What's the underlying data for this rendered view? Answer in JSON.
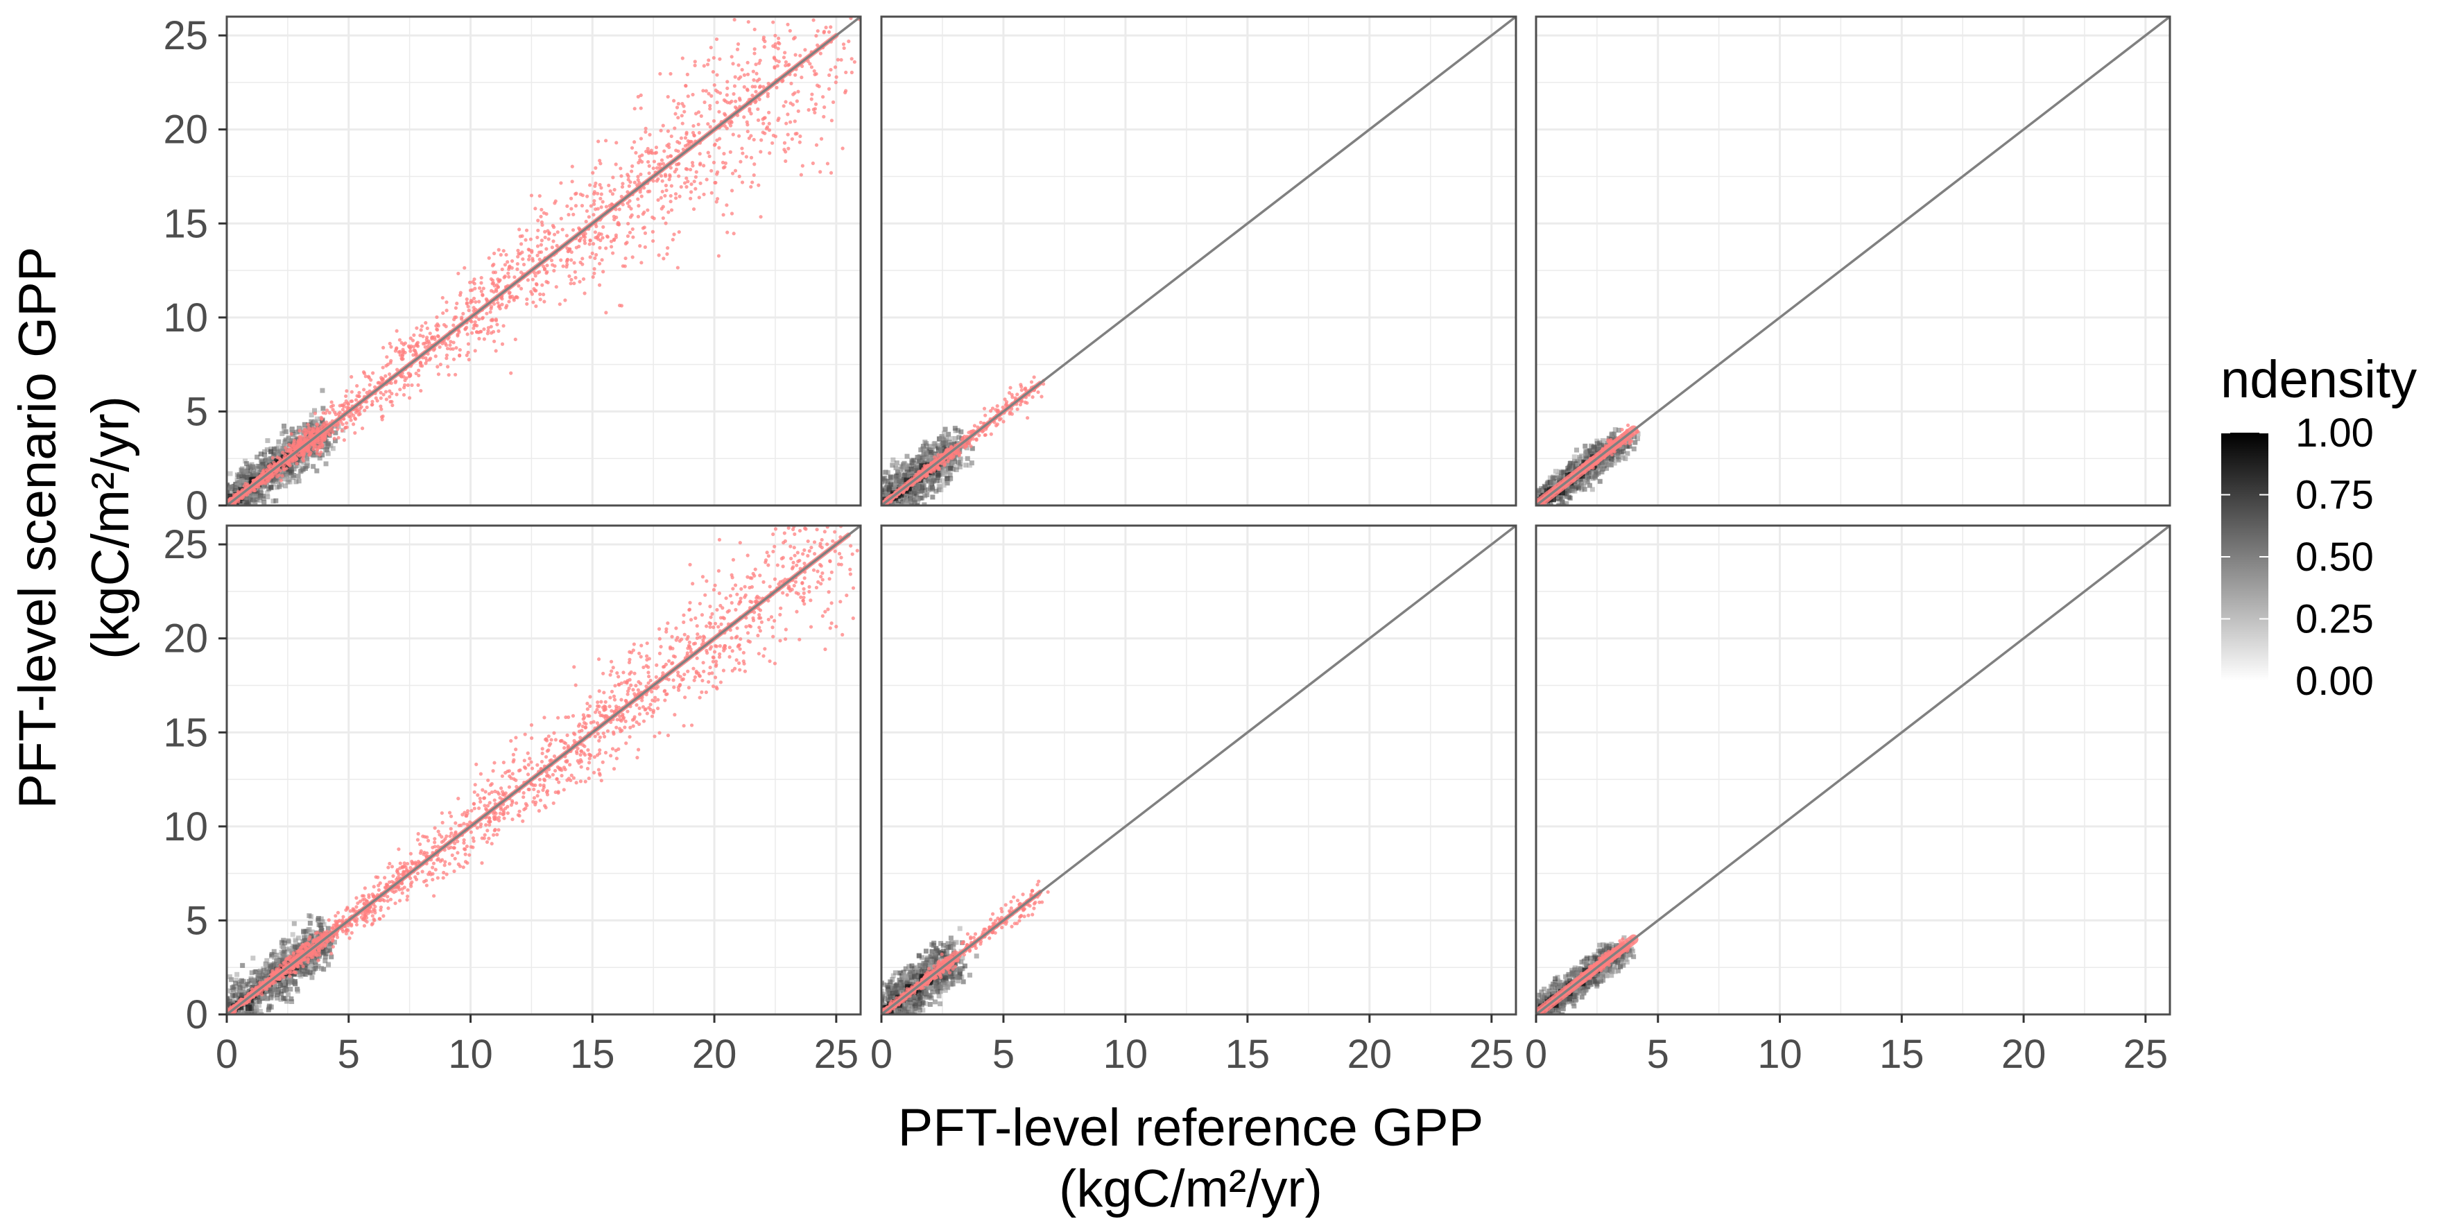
{
  "figure": {
    "xlabel_line1": "PFT-level reference GPP",
    "xlabel_line2": "(kgC/m²/yr)",
    "ylabel_line1": "PFT-level scenario GPP",
    "ylabel_line2": "(kgC/m²/yr)"
  },
  "legend": {
    "title": "ndensity",
    "ticks": [
      "1.00",
      "0.75",
      "0.50",
      "0.25",
      "0.00"
    ],
    "tick_values": [
      1.0,
      0.75,
      0.5,
      0.25,
      0.0
    ],
    "gradient_from": "#ffffff",
    "gradient_to": "#000000"
  },
  "colors": {
    "points": "#ff7f7f",
    "identity_line": "#808080",
    "panel_border": "#4d4d4d",
    "grid": "#ebebeb",
    "tick_text": "#4d4d4d"
  },
  "chart_data": {
    "type": "scatter",
    "layout": "2 rows x 3 columns facets",
    "xlim": [
      0,
      26
    ],
    "ylim": [
      0,
      26
    ],
    "x_ticks": [
      0,
      5,
      10,
      15,
      20,
      25
    ],
    "y_ticks": [
      0,
      5,
      10,
      15,
      20,
      25
    ],
    "x_tick_labels": [
      "0",
      "5",
      "10",
      "15",
      "20",
      "25"
    ],
    "y_tick_labels": [
      "0",
      "5",
      "10",
      "15",
      "20",
      "25"
    ],
    "grid": true,
    "reference_line": "y = x",
    "density_layer": "ndensity 2D bins (grey scale)",
    "legend_position": "right",
    "panels": [
      {
        "row": 1,
        "col": 1,
        "x_range": [
          0,
          25
        ],
        "y_range": [
          0,
          25
        ],
        "dense_cluster": [
          0,
          4
        ],
        "spread": "high"
      },
      {
        "row": 1,
        "col": 2,
        "x_range": [
          0,
          6.5
        ],
        "y_range": [
          0,
          6.5
        ],
        "dense_cluster": [
          0,
          3
        ],
        "spread": "low"
      },
      {
        "row": 1,
        "col": 3,
        "x_range": [
          0,
          4
        ],
        "y_range": [
          0,
          4
        ],
        "dense_cluster": [
          0,
          3.5
        ],
        "spread": "very low"
      },
      {
        "row": 2,
        "col": 1,
        "x_range": [
          0,
          25.5
        ],
        "y_range": [
          0,
          25.5
        ],
        "dense_cluster": [
          0,
          4
        ],
        "spread": "medium"
      },
      {
        "row": 2,
        "col": 2,
        "x_range": [
          0,
          6.5
        ],
        "y_range": [
          0,
          6.5
        ],
        "dense_cluster": [
          0,
          3
        ],
        "spread": "low"
      },
      {
        "row": 2,
        "col": 3,
        "x_range": [
          0,
          4
        ],
        "y_range": [
          0,
          4
        ],
        "dense_cluster": [
          0,
          3.5
        ],
        "spread": "very low"
      }
    ]
  }
}
